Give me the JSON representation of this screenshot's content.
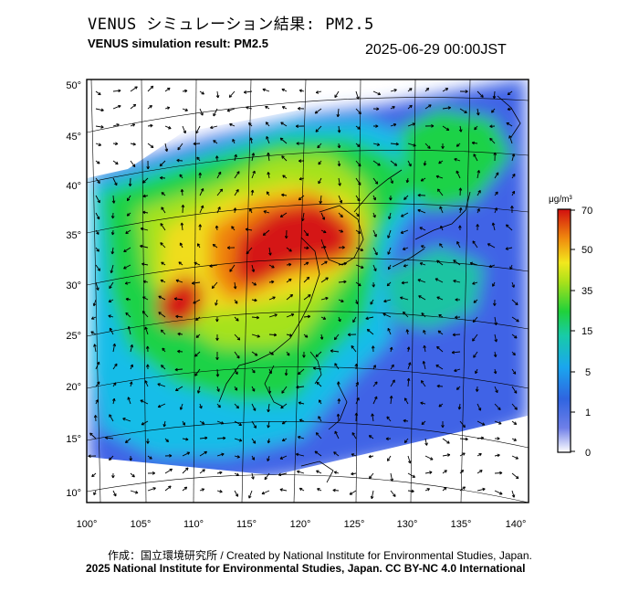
{
  "header": {
    "title_jp": "VENUS シミュレーション結果: PM2.5",
    "title_en": "VENUS simulation result: PM2.5",
    "timestamp": "2025-06-29 00:00JST"
  },
  "map": {
    "lat_labels": [
      "50°",
      "45°",
      "40°",
      "35°",
      "30°",
      "25°",
      "20°",
      "15°",
      "10°"
    ],
    "lon_labels": [
      "100°",
      "105°",
      "110°",
      "115°",
      "120°",
      "125°",
      "130°",
      "135°",
      "140°"
    ],
    "lat_range": [
      9,
      51
    ],
    "lon_range": [
      100,
      141
    ]
  },
  "colorbar": {
    "unit": "μg/m³",
    "ticks": [
      "70",
      "50",
      "35",
      "15",
      "5",
      "1",
      "0"
    ],
    "colors": [
      "#ffffff",
      "#3a4fd6",
      "#1bb8f0",
      "#16d23c",
      "#f5e61b",
      "#f07a0c",
      "#d61010"
    ]
  },
  "footer": {
    "credit_line": "作成：国立環境研究所 / Created by National Institute for Environmental Studies, Japan.",
    "license_line": "2025 National Institute for Environmental Studies, Japan. CC BY-NC 4.0 International"
  }
}
